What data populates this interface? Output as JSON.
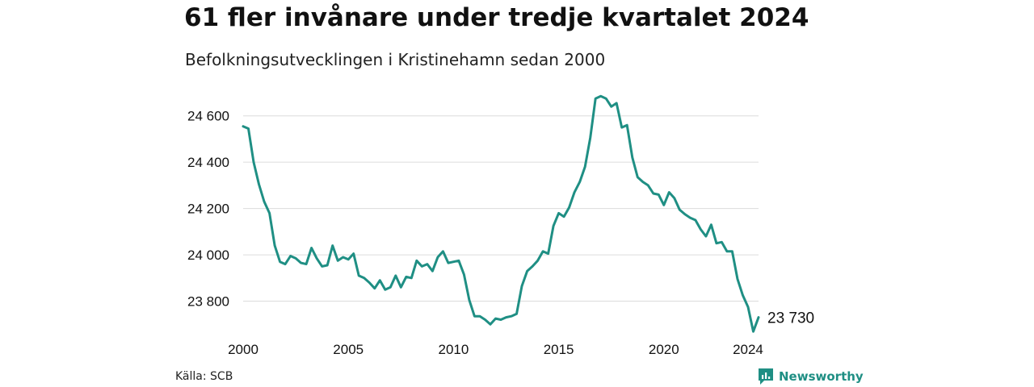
{
  "chart_data": {
    "type": "line",
    "title": "61 fler invånare under tredje kvartalet 2024",
    "subtitle": "Befolkningsutvecklingen i Kristinehamn sedan 2000",
    "xlabel": "",
    "ylabel": "",
    "xlim": [
      2000,
      2024.5
    ],
    "ylim": [
      23680,
      24700
    ],
    "x_ticks": [
      2000,
      2005,
      2010,
      2015,
      2020,
      2024
    ],
    "y_ticks": [
      23800,
      24000,
      24200,
      24400,
      24600
    ],
    "y_tick_labels": [
      "23 800",
      "24 000",
      "24 200",
      "24 400",
      "24 600"
    ],
    "grid": "horizontal",
    "line_color": "#1f8f84",
    "series": [
      {
        "x": [
          2000.0,
          2000.25,
          2000.5,
          2000.75,
          2001.0,
          2001.25,
          2001.5,
          2001.75,
          2002.0,
          2002.25,
          2002.5,
          2002.75,
          2003.0,
          2003.25,
          2003.5,
          2003.75,
          2004.0,
          2004.25,
          2004.5,
          2004.75,
          2005.0,
          2005.25,
          2005.5,
          2005.75,
          2006.0,
          2006.25,
          2006.5,
          2006.75,
          2007.0,
          2007.25,
          2007.5,
          2007.75,
          2008.0,
          2008.25,
          2008.5,
          2008.75,
          2009.0,
          2009.25,
          2009.5,
          2009.75,
          2010.0,
          2010.25,
          2010.5,
          2010.75,
          2011.0,
          2011.25,
          2011.5,
          2011.75,
          2012.0,
          2012.25,
          2012.5,
          2012.75,
          2013.0,
          2013.25,
          2013.5,
          2013.75,
          2014.0,
          2014.25,
          2014.5,
          2014.75,
          2015.0,
          2015.25,
          2015.5,
          2015.75,
          2016.0,
          2016.25,
          2016.5,
          2016.75,
          2017.0,
          2017.25,
          2017.5,
          2017.75,
          2018.0,
          2018.25,
          2018.5,
          2018.75,
          2019.0,
          2019.25,
          2019.5,
          2019.75,
          2020.0,
          2020.25,
          2020.5,
          2020.75,
          2021.0,
          2021.25,
          2021.5,
          2021.75,
          2022.0,
          2022.25,
          2022.5,
          2022.75,
          2023.0,
          2023.25,
          2023.5,
          2023.75,
          2024.0,
          2024.25,
          2024.5
        ],
        "values": [
          24555,
          24545,
          24400,
          24305,
          24230,
          24180,
          24040,
          23970,
          23960,
          23995,
          23985,
          23965,
          23960,
          24030,
          23985,
          23950,
          23955,
          24040,
          23975,
          23990,
          23980,
          24005,
          23910,
          23900,
          23880,
          23855,
          23890,
          23850,
          23860,
          23910,
          23860,
          23905,
          23900,
          23975,
          23950,
          23960,
          23930,
          23990,
          24015,
          23965,
          23970,
          23975,
          23915,
          23805,
          23735,
          23735,
          23720,
          23700,
          23725,
          23720,
          23730,
          23735,
          23745,
          23865,
          23930,
          23950,
          23975,
          24015,
          24005,
          24125,
          24180,
          24165,
          24205,
          24270,
          24315,
          24380,
          24505,
          24675,
          24685,
          24675,
          24640,
          24655,
          24550,
          24560,
          24420,
          24335,
          24315,
          24300,
          24265,
          24260,
          24215,
          24270,
          24245,
          24195,
          24175,
          24160,
          24150,
          24110,
          24080,
          24130,
          24050,
          24055,
          24015,
          24015,
          23895,
          23825,
          23775,
          23669,
          23730
        ]
      }
    ],
    "end_label": "23 730",
    "source": "Källa: SCB",
    "brand": "Newsworthy"
  }
}
